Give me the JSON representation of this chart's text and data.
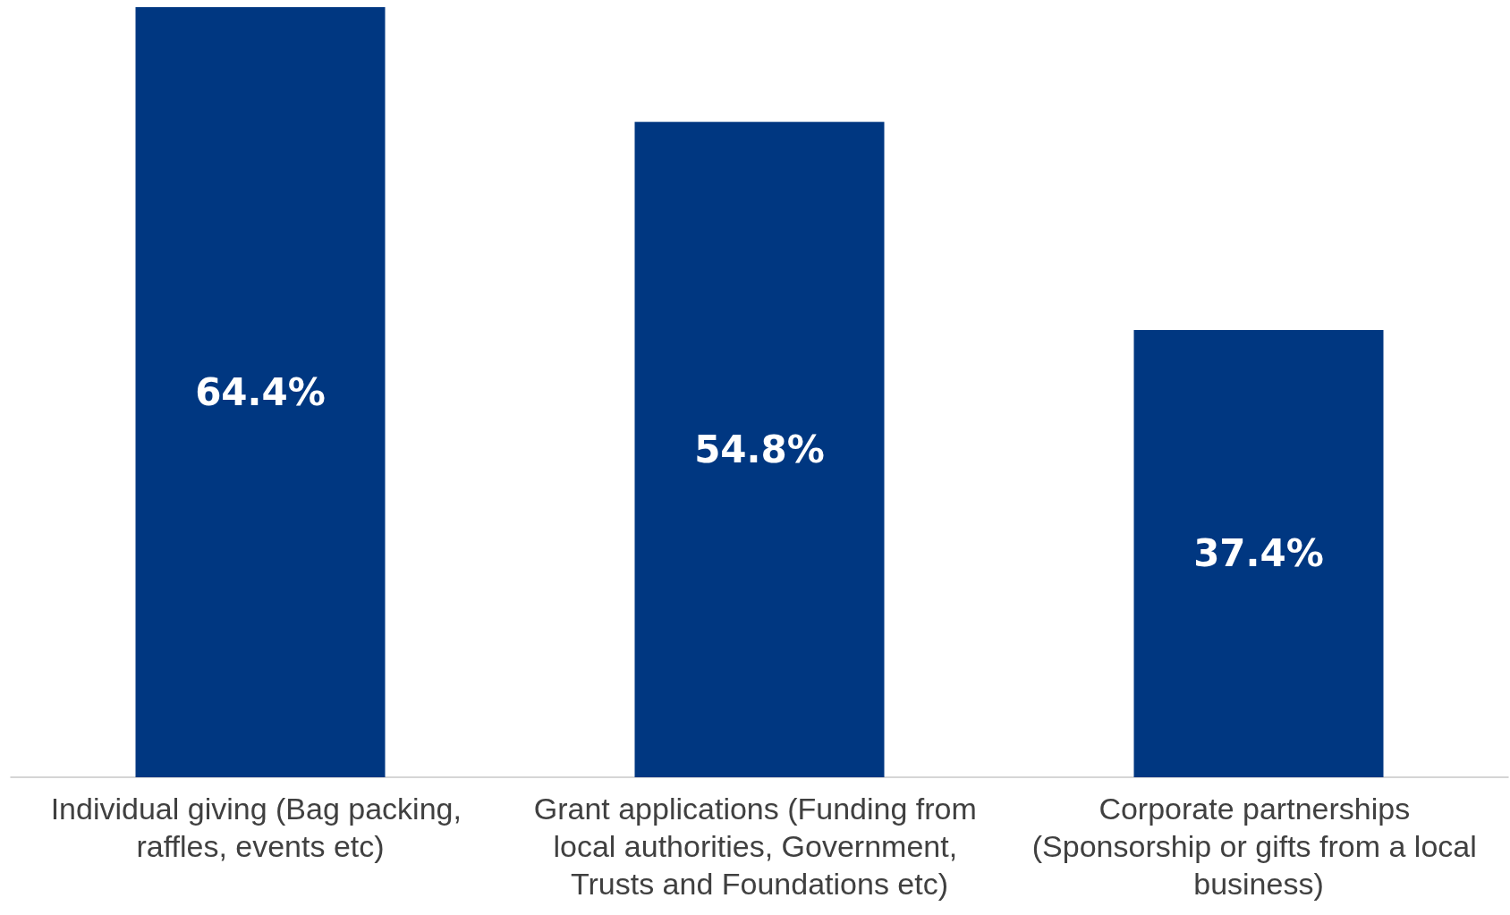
{
  "chart_data": {
    "type": "bar",
    "categories": [
      "Individual giving (Bag packing, raffles, events etc)",
      "Grant applications (Funding from local authorities, Government, Trusts and Foundations etc)",
      "Corporate partnerships (Sponsorship or gifts from a local business)"
    ],
    "values": [
      64.4,
      54.8,
      37.4
    ],
    "color": "#003781",
    "value_labels": [
      "64.4%",
      "54.8%",
      "37.4%"
    ]
  }
}
